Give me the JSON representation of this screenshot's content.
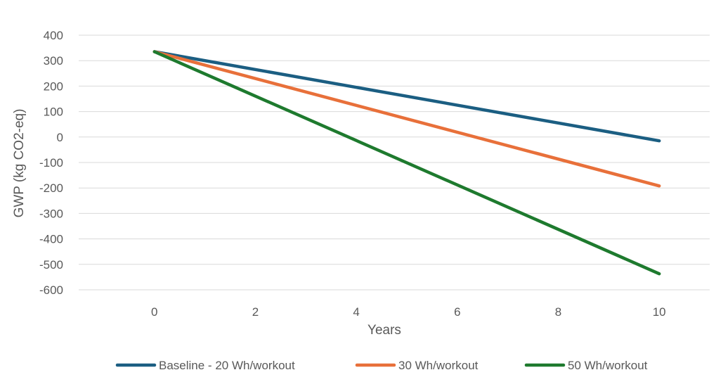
{
  "chart_data": {
    "type": "line",
    "title": "",
    "xlabel": "Years",
    "ylabel": "GWP (kg CO2-eq)",
    "xlim": [
      -1.5,
      11
    ],
    "ylim": [
      -600,
      400
    ],
    "x_ticks": [
      0,
      2,
      4,
      6,
      8,
      10
    ],
    "y_ticks": [
      400,
      300,
      200,
      100,
      0,
      -100,
      -200,
      -300,
      -400,
      -500,
      -600
    ],
    "grid": true,
    "legend_position": "bottom",
    "x": [
      0,
      10
    ],
    "series": [
      {
        "name": "Baseline - 20 Wh/workout",
        "values": [
          335,
          -15
        ],
        "color": "#1b5e82"
      },
      {
        "name": "30 Wh/workout",
        "values": [
          335,
          -192
        ],
        "color": "#e8703a"
      },
      {
        "name": "50 Wh/workout",
        "values": [
          335,
          -537
        ],
        "color": "#1e7a2e"
      }
    ]
  }
}
